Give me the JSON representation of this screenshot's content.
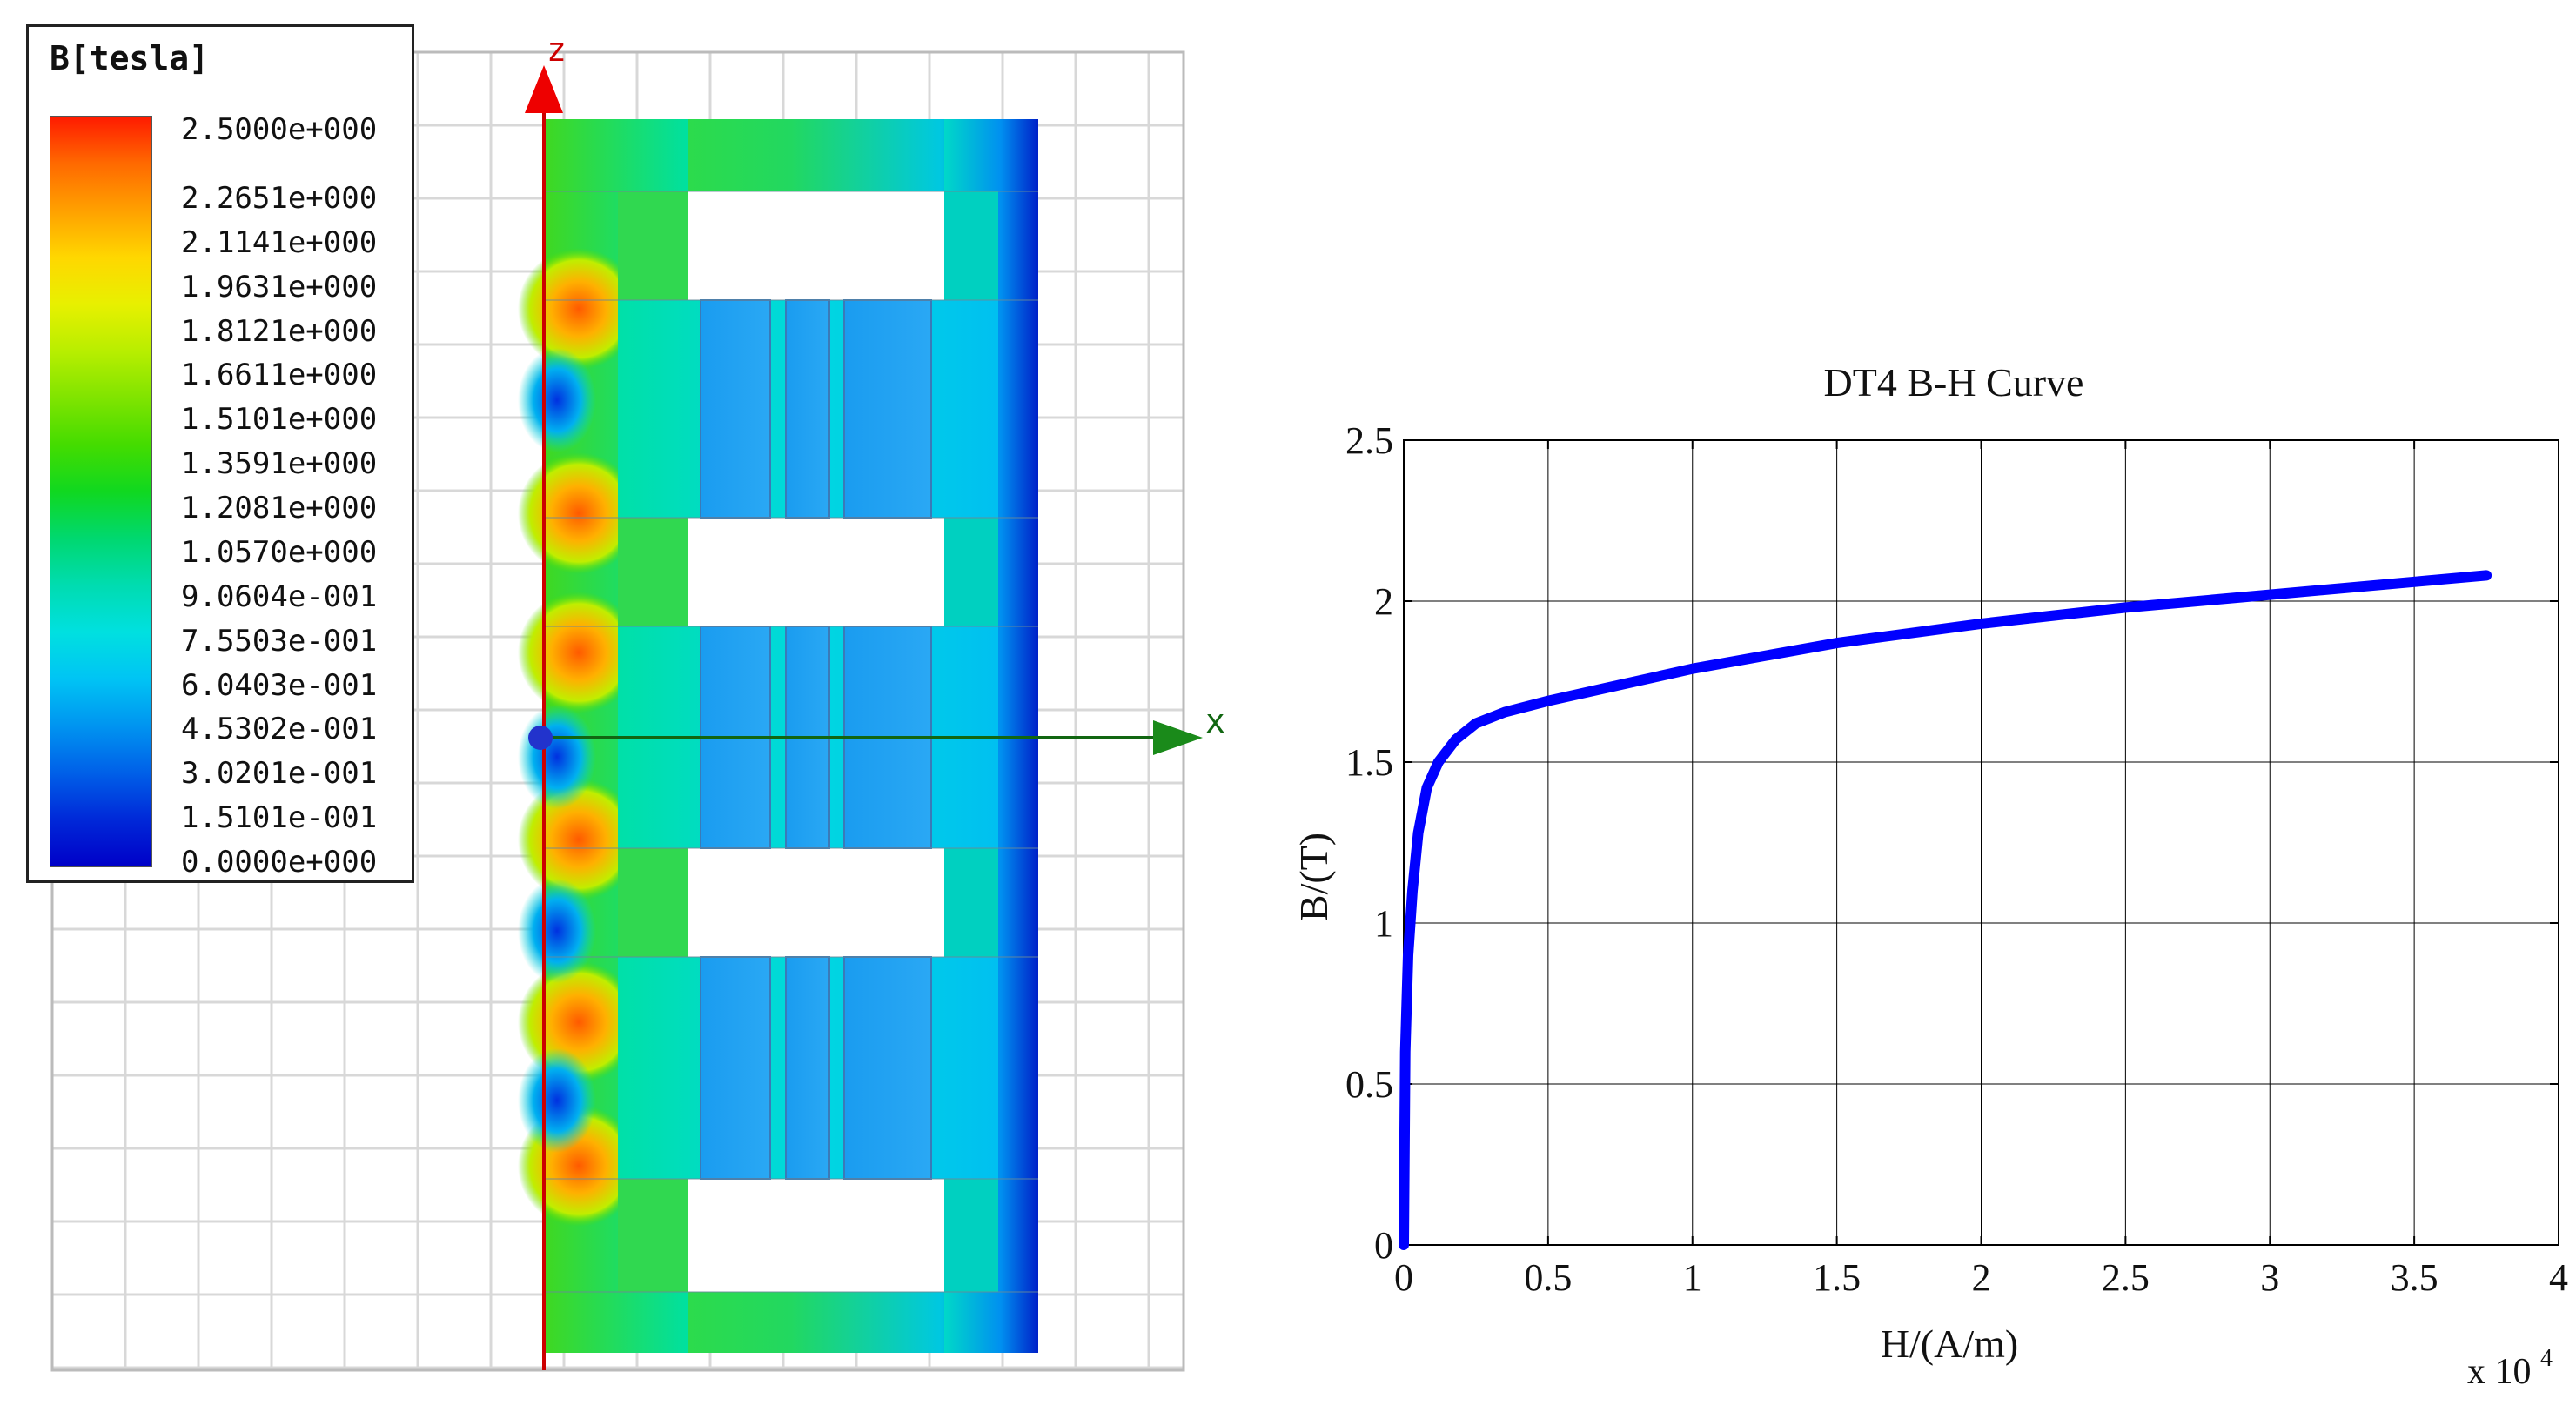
{
  "fem_plot": {
    "legend": {
      "title": "B[tesla]",
      "labels": [
        "2.5000e+000",
        "2.2651e+000",
        "2.1141e+000",
        "1.9631e+000",
        "1.8121e+000",
        "1.6611e+000",
        "1.5101e+000",
        "1.3591e+000",
        "1.2081e+000",
        "1.0570e+000",
        "9.0604e-001",
        "7.5503e-001",
        "6.0403e-001",
        "4.5302e-001",
        "3.0201e-001",
        "1.5101e-001",
        "0.0000e+000"
      ],
      "colors": [
        "#ff1a00",
        "#ff6a00",
        "#ffa000",
        "#ffd700",
        "#e8f000",
        "#b8ee00",
        "#80e400",
        "#44dc00",
        "#10d820",
        "#00d870",
        "#00dcb0",
        "#00e0e0",
        "#00c4f4",
        "#0094f0",
        "#0060e8",
        "#0028d8",
        "#0000c8"
      ]
    },
    "axes": {
      "z_label": "z",
      "x_label": "x"
    }
  },
  "chart_data": {
    "type": "line",
    "title": "DT4 B-H Curve",
    "xlabel": "H/(A/m)",
    "ylabel": "B/(T)",
    "x_multiplier_label": "x 10",
    "x_multiplier_exponent": "4",
    "xlim": [
      0,
      4
    ],
    "ylim": [
      0,
      2.5
    ],
    "x_ticks": [
      "0",
      "0.5",
      "1",
      "1.5",
      "2",
      "2.5",
      "3",
      "3.5",
      "4"
    ],
    "y_ticks": [
      "0",
      "0.5",
      "1",
      "1.5",
      "2",
      "2.5"
    ],
    "grid": true,
    "series_color": "#0000ff",
    "series": [
      {
        "x": [
          0,
          0.005,
          0.015,
          0.03,
          0.05,
          0.08,
          0.12,
          0.18,
          0.25,
          0.35,
          0.5,
          0.7,
          1.0,
          1.5,
          2.0,
          2.5,
          3.0,
          3.5,
          3.75
        ],
        "y": [
          0,
          0.6,
          0.9,
          1.1,
          1.28,
          1.42,
          1.5,
          1.57,
          1.62,
          1.655,
          1.69,
          1.73,
          1.79,
          1.87,
          1.93,
          1.98,
          2.02,
          2.06,
          2.08
        ]
      }
    ]
  }
}
